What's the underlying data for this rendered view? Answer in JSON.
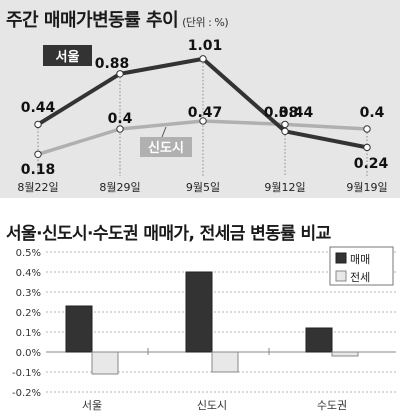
{
  "chart_data": [
    {
      "type": "line",
      "title": "주간 매매가변동률 추이",
      "unit": "(단위 : %)",
      "categories": [
        "8월22일",
        "8월29일",
        "9월5일",
        "9월12일",
        "9월19일"
      ],
      "series": [
        {
          "name": "서울",
          "values": [
            0.44,
            0.88,
            1.01,
            0.38,
            0.24
          ],
          "color": "#333333"
        },
        {
          "name": "신도시",
          "values": [
            0.18,
            0.4,
            0.47,
            0.44,
            0.4
          ],
          "color": "#b0b0b0"
        }
      ],
      "ylim": [
        0,
        1.2
      ],
      "grid": false,
      "labels": [
        "0.44",
        "0.88",
        "1.01",
        "0.38",
        "0.24",
        "0.18",
        "0.4",
        "0.47",
        "0.44",
        "0.4"
      ]
    },
    {
      "type": "bar",
      "title": "서울·신도시·수도권 매매가, 전세금 변동률 비교",
      "categories": [
        "서울",
        "신도시",
        "수도권"
      ],
      "series": [
        {
          "name": "매매",
          "values": [
            0.23,
            0.4,
            0.12
          ],
          "color": "#333333"
        },
        {
          "name": "전세",
          "values": [
            -0.11,
            -0.1,
            -0.02
          ],
          "color": "#e8e8e8"
        }
      ],
      "ylim": [
        -0.2,
        0.5
      ],
      "yticks": [
        "0.5%",
        "0.4%",
        "0.3%",
        "0.2%",
        "0.1%",
        "0.0%",
        "-0.1%",
        "-0.2%"
      ],
      "grid": true,
      "legend": "top-right"
    }
  ]
}
